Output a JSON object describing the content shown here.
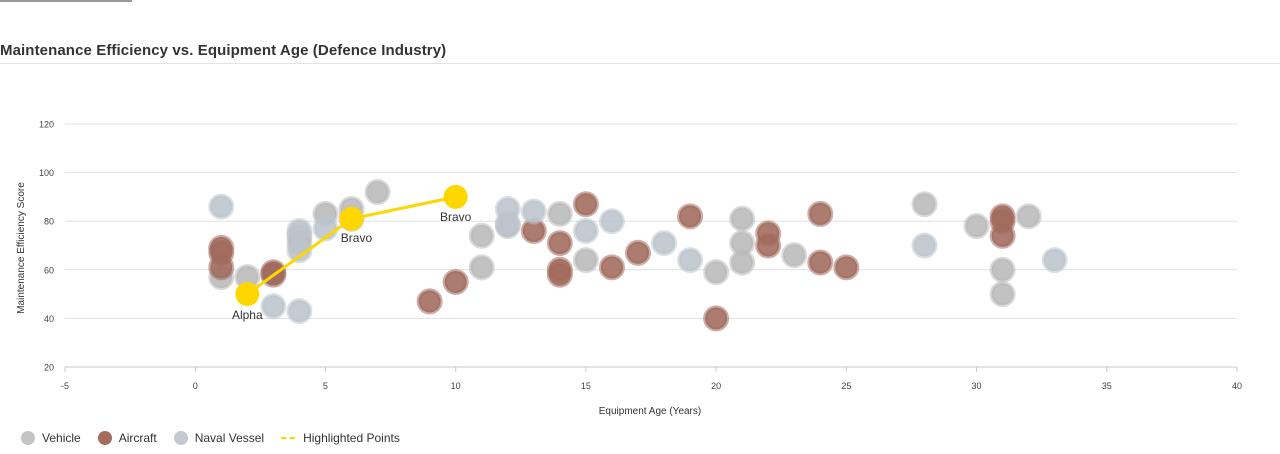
{
  "page": {
    "title": "Maintenance Efficiency vs. Equipment Age (Defence Industry)"
  },
  "chart_data": {
    "type": "scatter",
    "title": "Maintenance Efficiency vs. Equipment Age (Defence Industry)",
    "xlabel": "Equipment Age (Years)",
    "ylabel": "Maintenance Efficiency Score",
    "xlim": [
      -5,
      40
    ],
    "ylim": [
      20,
      120
    ],
    "xticks": [
      -5,
      0,
      5,
      10,
      15,
      20,
      25,
      30,
      35,
      40
    ],
    "yticks": [
      20,
      40,
      60,
      80,
      100,
      120
    ],
    "grid": "horizontal",
    "legend_position": "bottom-left",
    "series": [
      {
        "name": "Vehicle",
        "color": "#b9b9b9",
        "points": [
          {
            "x": 1,
            "y": 57
          },
          {
            "x": 2,
            "y": 57
          },
          {
            "x": 4,
            "y": 71
          },
          {
            "x": 4,
            "y": 74
          },
          {
            "x": 5,
            "y": 83
          },
          {
            "x": 6,
            "y": 85
          },
          {
            "x": 6,
            "y": 81
          },
          {
            "x": 7,
            "y": 92
          },
          {
            "x": 11,
            "y": 74
          },
          {
            "x": 11,
            "y": 61
          },
          {
            "x": 12,
            "y": 78
          },
          {
            "x": 14,
            "y": 83
          },
          {
            "x": 15,
            "y": 64
          },
          {
            "x": 20,
            "y": 59
          },
          {
            "x": 21,
            "y": 81
          },
          {
            "x": 21,
            "y": 71
          },
          {
            "x": 21,
            "y": 63
          },
          {
            "x": 23,
            "y": 66
          },
          {
            "x": 28,
            "y": 87
          },
          {
            "x": 30,
            "y": 78
          },
          {
            "x": 31,
            "y": 60
          },
          {
            "x": 31,
            "y": 50
          },
          {
            "x": 32,
            "y": 82
          }
        ]
      },
      {
        "name": "Aircraft",
        "color": "#a06a5c",
        "points": [
          {
            "x": 1,
            "y": 69
          },
          {
            "x": 1,
            "y": 67
          },
          {
            "x": 1,
            "y": 61
          },
          {
            "x": 3,
            "y": 58
          },
          {
            "x": 3,
            "y": 59
          },
          {
            "x": 9,
            "y": 47
          },
          {
            "x": 10,
            "y": 55
          },
          {
            "x": 13,
            "y": 76
          },
          {
            "x": 14,
            "y": 71
          },
          {
            "x": 14,
            "y": 60
          },
          {
            "x": 14,
            "y": 58
          },
          {
            "x": 15,
            "y": 87
          },
          {
            "x": 16,
            "y": 61
          },
          {
            "x": 17,
            "y": 67
          },
          {
            "x": 19,
            "y": 82
          },
          {
            "x": 20,
            "y": 40
          },
          {
            "x": 22,
            "y": 75
          },
          {
            "x": 22,
            "y": 70
          },
          {
            "x": 24,
            "y": 83
          },
          {
            "x": 24,
            "y": 63
          },
          {
            "x": 25,
            "y": 61
          },
          {
            "x": 31,
            "y": 82
          },
          {
            "x": 31,
            "y": 80
          },
          {
            "x": 31,
            "y": 74
          }
        ]
      },
      {
        "name": "Naval Vessel",
        "color": "#bcc4cc",
        "points": [
          {
            "x": 1,
            "y": 86
          },
          {
            "x": 3,
            "y": 45
          },
          {
            "x": 4,
            "y": 43
          },
          {
            "x": 4,
            "y": 68
          },
          {
            "x": 4,
            "y": 76
          },
          {
            "x": 5,
            "y": 77
          },
          {
            "x": 12,
            "y": 85
          },
          {
            "x": 12,
            "y": 79
          },
          {
            "x": 13,
            "y": 84
          },
          {
            "x": 15,
            "y": 76
          },
          {
            "x": 16,
            "y": 80
          },
          {
            "x": 18,
            "y": 71
          },
          {
            "x": 19,
            "y": 64
          },
          {
            "x": 28,
            "y": 70
          },
          {
            "x": 33,
            "y": 64
          }
        ]
      },
      {
        "name": "Highlighted Points",
        "color": "#FFD700",
        "style": "line",
        "points": [
          {
            "x": 2,
            "y": 50,
            "label": "Alpha"
          },
          {
            "x": 6,
            "y": 81,
            "label": "Bravo"
          },
          {
            "x": 10,
            "y": 90,
            "label": "Bravo"
          }
        ]
      }
    ]
  }
}
